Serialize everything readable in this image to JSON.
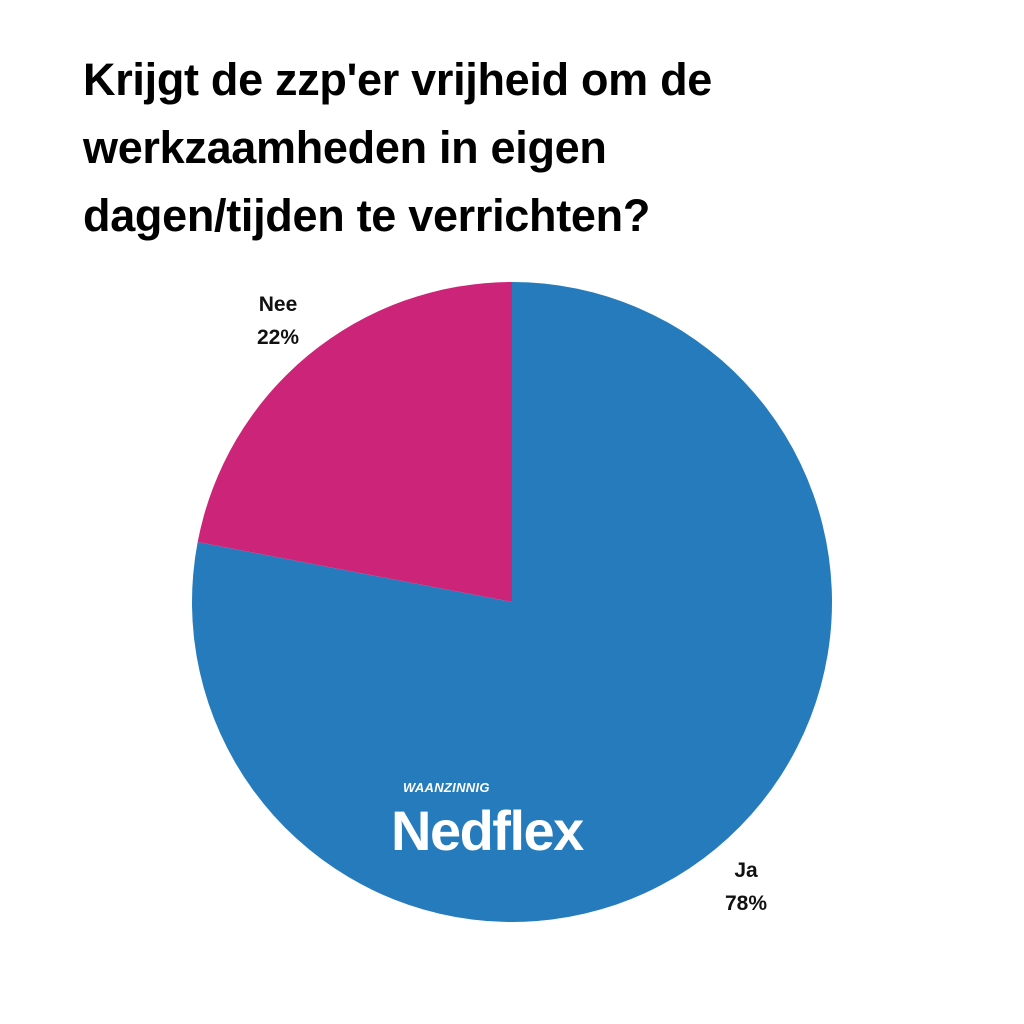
{
  "chart_data": {
    "type": "pie",
    "title": "Krijgt de zzp'er vrijheid om de\nwerkzaamheden in eigen\ndagen/tijden te verrichten?",
    "slices": [
      {
        "label": "Ja",
        "value": 78,
        "value_label": "78%",
        "color": "#257bbb"
      },
      {
        "label": "Nee",
        "value": 22,
        "value_label": "22%",
        "color": "#cc2478"
      }
    ],
    "start_angle_deg": 0,
    "direction": "clockwise",
    "legend": "none"
  },
  "logo": {
    "small_text": "WAANZINNIG",
    "brand_text": "Nedflex",
    "color": "#ffffff"
  }
}
